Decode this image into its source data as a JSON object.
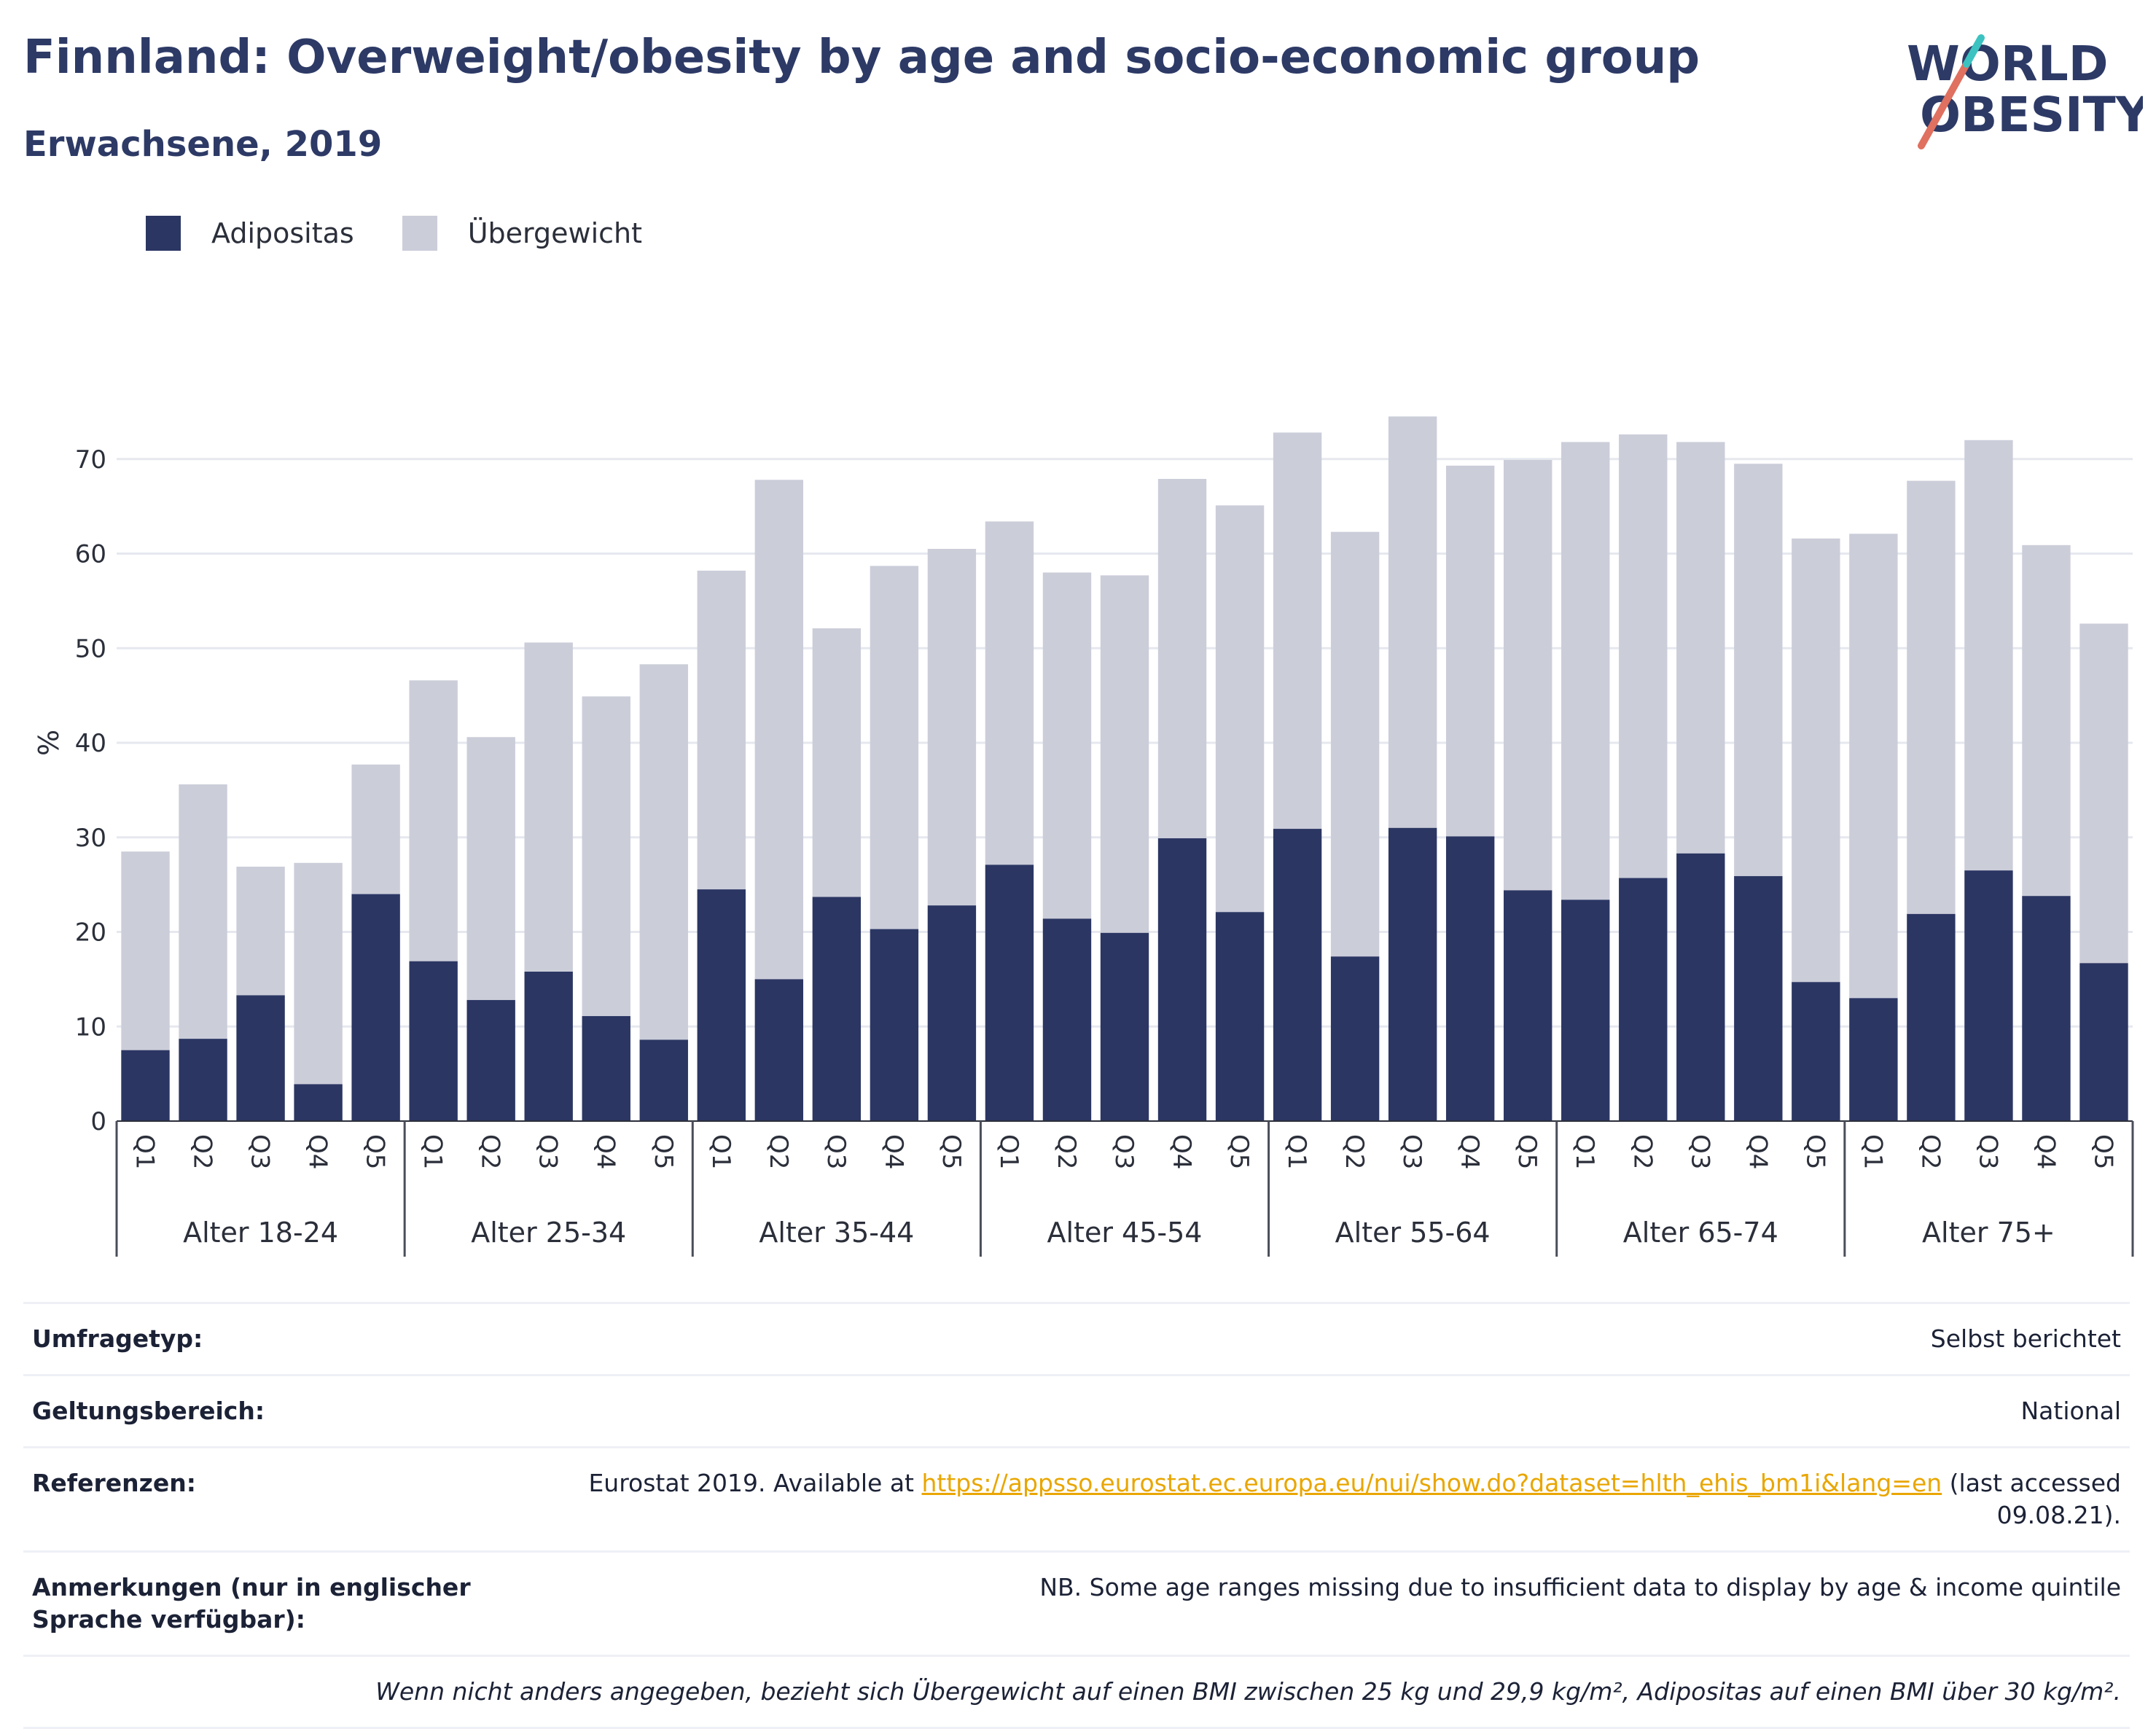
{
  "header": {
    "title": "Finnland: Overweight/obesity by age and socio-economic group",
    "subtitle": "Erwachsene, 2019"
  },
  "logo": {
    "line1": "WORLD",
    "line2": "OBESITY",
    "accent_color": "#e0705f",
    "accent_color_2": "#3cc3c1"
  },
  "colors": {
    "obesity": "#2b3663",
    "overweight": "#cbcdd9",
    "grid": "#e6e8ef"
  },
  "chart_data": {
    "type": "bar",
    "stacked": true,
    "ylabel": "%",
    "ylim": [
      0,
      80
    ],
    "yticks": [
      0,
      10,
      20,
      30,
      40,
      50,
      60,
      70
    ],
    "grid": true,
    "legend_position": "top-left",
    "categories": [
      "Q1",
      "Q2",
      "Q3",
      "Q4",
      "Q5"
    ],
    "groups": [
      "Alter 18-24",
      "Alter 25-34",
      "Alter 35-44",
      "Alter 45-54",
      "Alter 55-64",
      "Alter 65-74",
      "Alter 75+"
    ],
    "series": [
      {
        "name": "Adipositas",
        "values": [
          [
            7.5,
            8.7,
            13.3,
            3.9,
            24.0
          ],
          [
            16.9,
            12.8,
            15.8,
            11.1,
            8.6
          ],
          [
            24.5,
            15.0,
            23.7,
            20.3,
            22.8
          ],
          [
            27.1,
            21.4,
            19.9,
            29.9,
            22.1
          ],
          [
            30.9,
            17.4,
            31.0,
            30.1,
            24.4
          ],
          [
            23.4,
            25.7,
            28.3,
            25.9,
            14.7
          ],
          [
            13.0,
            21.9,
            26.5,
            23.8,
            16.7
          ]
        ]
      },
      {
        "name": "Übergewicht",
        "values": [
          [
            21.0,
            26.9,
            13.6,
            23.4,
            13.7
          ],
          [
            29.7,
            27.8,
            34.8,
            33.8,
            39.7
          ],
          [
            33.7,
            52.8,
            28.4,
            38.4,
            37.7
          ],
          [
            36.3,
            36.6,
            37.8,
            38.0,
            43.0
          ],
          [
            41.9,
            44.9,
            43.5,
            39.2,
            45.5
          ],
          [
            48.4,
            46.9,
            43.5,
            43.6,
            46.9
          ],
          [
            49.1,
            45.8,
            45.5,
            37.1,
            35.9
          ]
        ]
      }
    ]
  },
  "info": {
    "survey_label": "Umfragetyp:",
    "survey_value": "Selbst berichtet",
    "scope_label": "Geltungsbereich:",
    "scope_value": "National",
    "refs_label": "Referenzen:",
    "refs_prefix": "Eurostat 2019. Available at ",
    "refs_link": "https://appsso.eurostat.ec.europa.eu/nui/show.do?dataset=hlth_ehis_bm1i&lang=en",
    "refs_suffix": " (last accessed",
    "refs_date": "09.08.21).",
    "notes_label": "Anmerkungen (nur in englischer Sprache verfügbar):",
    "notes_value": "NB. Some age ranges missing due to insufficient data to display by age & income quintile",
    "footnote": "Wenn nicht anders angegeben, bezieht sich Übergewicht auf einen BMI zwischen 25 kg und 29,9 kg/m², Adipositas auf einen BMI über 30 kg/m²."
  }
}
